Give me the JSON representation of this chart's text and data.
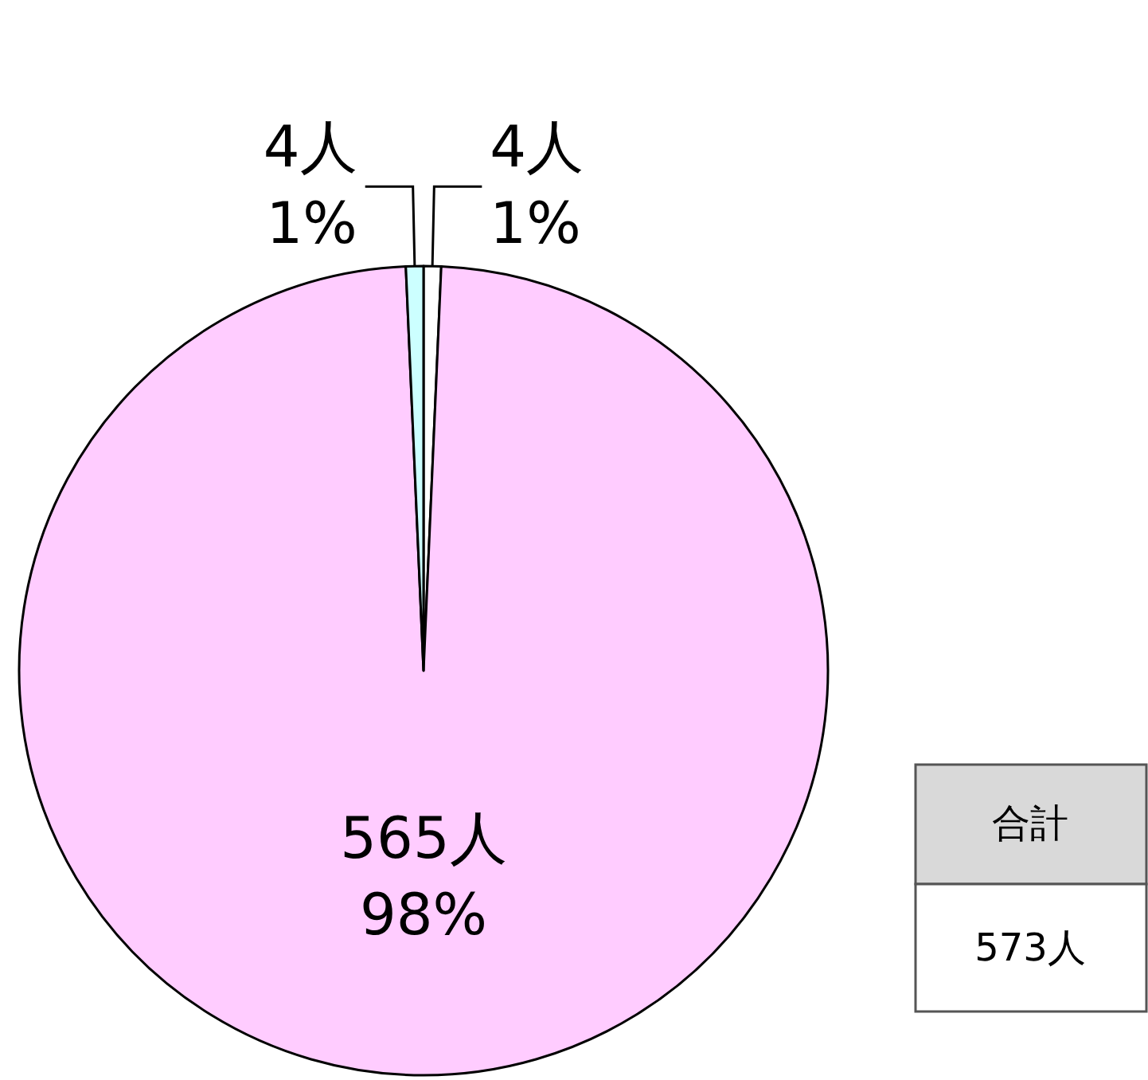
{
  "chart_data": {
    "type": "pie",
    "categories": [
      null,
      null,
      null
    ],
    "values": [
      4,
      565,
      4
    ],
    "colors": [
      "#ffffff",
      "#ffccff",
      "#ccffff"
    ],
    "value_labels": [
      "4人\n1%",
      "565人\n98%",
      "4人\n1%"
    ],
    "annotations": [
      "合計",
      "573人"
    ]
  }
}
